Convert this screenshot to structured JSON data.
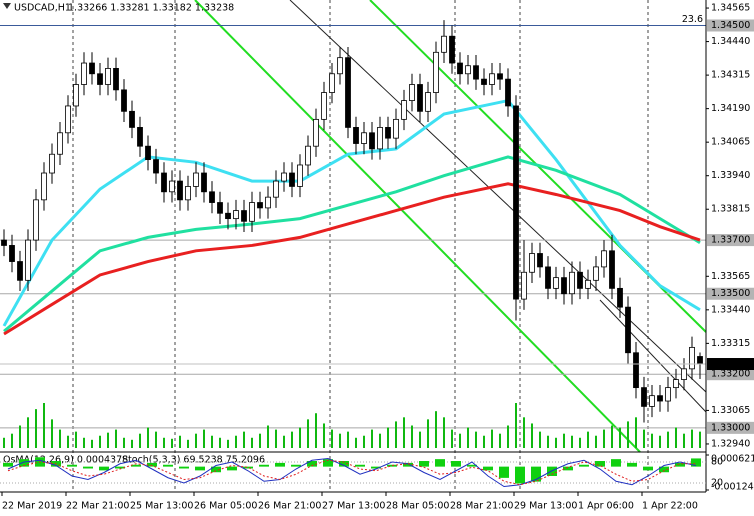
{
  "chart_data": {
    "type": "candlestick",
    "title": "USDCAD,H1",
    "subtitle": "1.33266 1.33281 1.33182 1.33238",
    "x_labels": [
      "22 Mar 2019",
      "22 Mar 21:00",
      "25 Mar 13:00",
      "26 Mar 05:00",
      "26 Mar 21:00",
      "27 Mar 13:00",
      "28 Mar 05:00",
      "28 Mar 21:00",
      "29 Mar 13:00",
      "1 Apr 06:00",
      "1 Apr 22:00"
    ],
    "open": [
      1.337,
      1.3368,
      1.3362,
      1.3355,
      1.337,
      1.3385,
      1.3395,
      1.3402,
      1.341,
      1.342,
      1.3428,
      1.3436,
      1.3432,
      1.3428,
      1.3434,
      1.3426,
      1.3418,
      1.3412,
      1.3405,
      1.34,
      1.3395,
      1.3388,
      1.3392,
      1.3385,
      1.339,
      1.3395,
      1.3388,
      1.3384,
      1.338,
      1.3378,
      1.3381,
      1.3377,
      1.3384,
      1.3382,
      1.3386,
      1.3392,
      1.3395,
      1.339,
      1.3398,
      1.3405,
      1.3415,
      1.3425,
      1.3432,
      1.3438,
      1.3412,
      1.3406,
      1.341,
      1.3404,
      1.3412,
      1.3408,
      1.3415,
      1.3422,
      1.3428,
      1.3418,
      1.3425,
      1.344,
      1.3446,
      1.3436,
      1.3432,
      1.3435,
      1.343,
      1.3428,
      1.3432,
      1.343,
      1.342,
      1.3348,
      1.3358,
      1.3365,
      1.336,
      1.3352,
      1.3356,
      1.335,
      1.3358,
      1.3352,
      1.3355,
      1.336,
      1.3366,
      1.3352,
      1.3345,
      1.3328,
      1.3315,
      1.3308,
      1.3312,
      1.331,
      1.3315,
      1.3318,
      1.3322,
      1.33266
    ],
    "high": [
      1.3374,
      1.3372,
      1.3366,
      1.3374,
      1.3389,
      1.3399,
      1.3406,
      1.3414,
      1.3424,
      1.3432,
      1.344,
      1.344,
      1.3436,
      1.3438,
      1.3438,
      1.343,
      1.3422,
      1.3416,
      1.3409,
      1.3404,
      1.3399,
      1.3396,
      1.3396,
      1.3394,
      1.3399,
      1.3399,
      1.3392,
      1.3388,
      1.3384,
      1.3385,
      1.3385,
      1.3388,
      1.3388,
      1.339,
      1.3396,
      1.3399,
      1.3399,
      1.3402,
      1.3409,
      1.3419,
      1.3429,
      1.3436,
      1.3442,
      1.3442,
      1.3416,
      1.3414,
      1.3414,
      1.3416,
      1.3416,
      1.3419,
      1.3426,
      1.3432,
      1.3432,
      1.3429,
      1.3444,
      1.3452,
      1.345,
      1.344,
      1.3439,
      1.3439,
      1.3434,
      1.3436,
      1.3436,
      1.3434,
      1.3424,
      1.337,
      1.3369,
      1.3369,
      1.3364,
      1.336,
      1.336,
      1.3362,
      1.3362,
      1.3359,
      1.3364,
      1.337,
      1.3372,
      1.3356,
      1.3349,
      1.3332,
      1.3319,
      1.3316,
      1.3316,
      1.3319,
      1.3322,
      1.3326,
      1.3334,
      1.33281
    ],
    "low": [
      1.3364,
      1.3358,
      1.3351,
      1.3351,
      1.3366,
      1.3381,
      1.3391,
      1.3398,
      1.3406,
      1.3416,
      1.3424,
      1.3428,
      1.3424,
      1.3424,
      1.3422,
      1.3414,
      1.3408,
      1.3401,
      1.3396,
      1.3391,
      1.3384,
      1.3384,
      1.3381,
      1.3381,
      1.3386,
      1.3384,
      1.338,
      1.3376,
      1.3374,
      1.3374,
      1.3373,
      1.3373,
      1.3378,
      1.3378,
      1.3382,
      1.3388,
      1.3386,
      1.3386,
      1.3394,
      1.3401,
      1.3411,
      1.3421,
      1.3428,
      1.3408,
      1.3402,
      1.3402,
      1.34,
      1.34,
      1.3404,
      1.3404,
      1.3411,
      1.3418,
      1.3414,
      1.3414,
      1.3421,
      1.3436,
      1.3432,
      1.3428,
      1.3428,
      1.3426,
      1.3424,
      1.3424,
      1.3426,
      1.3416,
      1.334,
      1.3344,
      1.3354,
      1.3356,
      1.3348,
      1.3348,
      1.3346,
      1.3346,
      1.3348,
      1.3348,
      1.3351,
      1.3356,
      1.3348,
      1.3341,
      1.3324,
      1.3311,
      1.3302,
      1.3304,
      1.3306,
      1.3306,
      1.3311,
      1.3314,
      1.3318,
      1.33182
    ],
    "close": [
      1.3368,
      1.3362,
      1.3355,
      1.337,
      1.3385,
      1.3395,
      1.3402,
      1.341,
      1.342,
      1.3428,
      1.3436,
      1.3432,
      1.3428,
      1.3434,
      1.3426,
      1.3418,
      1.3412,
      1.3405,
      1.34,
      1.3395,
      1.3388,
      1.3392,
      1.3385,
      1.339,
      1.3395,
      1.3388,
      1.3384,
      1.338,
      1.3378,
      1.3381,
      1.3377,
      1.3384,
      1.3382,
      1.3386,
      1.3392,
      1.3395,
      1.339,
      1.3398,
      1.3405,
      1.3415,
      1.3425,
      1.3432,
      1.3438,
      1.3412,
      1.3406,
      1.341,
      1.3404,
      1.3412,
      1.3408,
      1.3415,
      1.3422,
      1.3428,
      1.3418,
      1.3425,
      1.344,
      1.3446,
      1.3436,
      1.3432,
      1.3435,
      1.343,
      1.3428,
      1.3432,
      1.343,
      1.342,
      1.3348,
      1.3358,
      1.3365,
      1.336,
      1.3352,
      1.3356,
      1.335,
      1.3358,
      1.3352,
      1.3355,
      1.336,
      1.3366,
      1.3352,
      1.3345,
      1.3328,
      1.3315,
      1.3308,
      1.3312,
      1.331,
      1.3315,
      1.3318,
      1.3322,
      1.333,
      1.33238
    ],
    "ylim": [
      1.3291,
      1.34595
    ],
    "yticks": [
      {
        "value": 1.34565,
        "label": "1.34565"
      },
      {
        "value": 1.3444,
        "label": "1.34440"
      },
      {
        "value": 1.34315,
        "label": "1.34315"
      },
      {
        "value": 1.3419,
        "label": "1.34190"
      },
      {
        "value": 1.34065,
        "label": "1.34065"
      },
      {
        "value": 1.3394,
        "label": "1.33940"
      },
      {
        "value": 1.33815,
        "label": "1.33815"
      },
      {
        "value": 1.33565,
        "label": "1.33565"
      },
      {
        "value": 1.3344,
        "label": "1.33440"
      },
      {
        "value": 1.33315,
        "label": "1.33315"
      },
      {
        "value": 1.33065,
        "label": "1.33065"
      },
      {
        "value": 1.3294,
        "label": "1.32940"
      }
    ],
    "levels": [
      {
        "value": 1.345,
        "label": "1.34500",
        "color": "#3a5a9a"
      },
      {
        "value": 1.337,
        "label": "1.33700",
        "color": "#a8a8a8"
      },
      {
        "value": 1.335,
        "label": "1.33500",
        "color": "#a8a8a8"
      },
      {
        "value": 1.332,
        "label": "1.33200",
        "color": "#a8a8a8"
      },
      {
        "value": 1.33,
        "label": "1.33000",
        "color": "#a8a8a8"
      }
    ],
    "current_price": {
      "value": 1.33238,
      "label": "1.33238"
    },
    "fibo_label": "23.6",
    "series": [
      {
        "color": "#3ee0f2",
        "x": [
          0,
          6,
          12,
          18,
          24,
          31,
          37,
          43,
          49,
          55,
          63,
          69,
          77,
          82,
          87
        ],
        "values": [
          1.3338,
          1.337,
          1.3389,
          1.3401,
          1.3399,
          1.3392,
          1.3392,
          1.3402,
          1.3404,
          1.3417,
          1.3422,
          1.34,
          1.3368,
          1.3353,
          1.3344
        ]
      },
      {
        "color": "#20e0a0",
        "x": [
          0,
          6,
          12,
          18,
          24,
          31,
          37,
          43,
          49,
          55,
          63,
          69,
          77,
          82,
          87
        ],
        "values": [
          1.3336,
          1.3351,
          1.3366,
          1.3371,
          1.3374,
          1.3376,
          1.3378,
          1.3383,
          1.3388,
          1.3394,
          1.3401,
          1.3396,
          1.3387,
          1.3378,
          1.3369
        ]
      },
      {
        "color": "#e82020",
        "x": [
          0,
          6,
          12,
          18,
          24,
          31,
          37,
          43,
          49,
          55,
          63,
          69,
          77,
          82,
          87
        ],
        "values": [
          1.3335,
          1.3346,
          1.3357,
          1.3362,
          1.3366,
          1.3368,
          1.3371,
          1.3376,
          1.3381,
          1.3386,
          1.3391,
          1.3387,
          1.3381,
          1.3375,
          1.337
        ]
      }
    ],
    "volume_color": "#10b810",
    "volumes": [
      10,
      14,
      22,
      30,
      38,
      44,
      28,
      18,
      12,
      16,
      10,
      8,
      12,
      15,
      18,
      10,
      8,
      14,
      20,
      16,
      10,
      9,
      12,
      8,
      14,
      18,
      12,
      10,
      8,
      12,
      16,
      10,
      14,
      22,
      18,
      12,
      16,
      20,
      28,
      34,
      24,
      18,
      14,
      16,
      10,
      12,
      18,
      14,
      20,
      26,
      30,
      22,
      16,
      28,
      36,
      30,
      18,
      14,
      20,
      16,
      12,
      18,
      14,
      22,
      44,
      30,
      24,
      16,
      12,
      10,
      14,
      12,
      10,
      16,
      12,
      18,
      22,
      20,
      26,
      30,
      18,
      14,
      12,
      16,
      20,
      14,
      18,
      16
    ],
    "oscillator": {
      "osma_title": "OsMA(12,26,9) 0.0004378",
      "stoch_title": "Stoch(5,3,3) 69.5238 75.2096",
      "osma_color": "#10d010",
      "osma": [
        0.0002,
        0.0004,
        0.0005,
        0.0003,
        0.0001,
        -0.0001,
        -0.0002,
        -0.0001,
        0.0001,
        0.0002,
        0.0001,
        -0.0001,
        -0.0002,
        -0.0003,
        -0.0002,
        -0.0001,
        0.0001,
        0.0002,
        0.0001,
        0.0003,
        0.0004,
        0.0003,
        0.0001,
        -0.0001,
        0.0001,
        0.0002,
        0.0003,
        0.0004,
        0.0003,
        0.0001,
        -0.0002,
        -0.0006,
        -0.0009,
        -0.0008,
        -0.0005,
        -0.0002,
        0.0001,
        0.0003,
        0.0004,
        0.0002,
        -0.0002,
        -0.0003,
        0.0002,
        0.0004378
      ],
      "stoch_color": "#2030c0",
      "stoch": [
        60,
        80,
        85,
        70,
        40,
        30,
        50,
        75,
        85,
        60,
        35,
        20,
        40,
        70,
        80,
        55,
        25,
        30,
        60,
        85,
        90,
        70,
        45,
        60,
        80,
        75,
        50,
        30,
        55,
        80,
        40,
        10,
        15,
        30,
        55,
        75,
        85,
        60,
        25,
        15,
        40,
        70,
        80,
        69.5238
      ],
      "signal_color": "#e02020",
      "signal": [
        55,
        70,
        80,
        75,
        55,
        40,
        45,
        60,
        75,
        70,
        50,
        30,
        35,
        55,
        70,
        65,
        40,
        30,
        45,
        70,
        85,
        80,
        60,
        55,
        70,
        75,
        65,
        45,
        50,
        65,
        55,
        25,
        15,
        25,
        45,
        65,
        80,
        70,
        45,
        25,
        30,
        55,
        75,
        75.2096
      ],
      "ylim": [
        -0.001248,
        0.000621
      ],
      "yticks": [
        {
          "value": 0.000621,
          "label": "0.000621"
        },
        {
          "value": -0.001248,
          "label": "-0.001248"
        }
      ],
      "y2lim": [
        0,
        100
      ],
      "y2ticks": [
        80,
        20
      ]
    }
  }
}
